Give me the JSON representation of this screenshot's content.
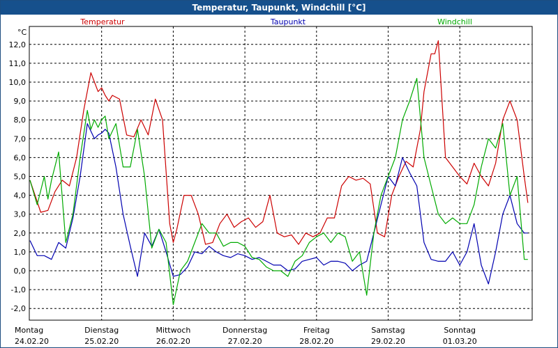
{
  "window": {
    "title": "Temperatur, Taupunkt, Windchill [°C]"
  },
  "chart_data": {
    "type": "line",
    "title": "Temperatur, Taupunkt, Windchill [°C]",
    "ylabel": "°C",
    "ylim": [
      -2.5,
      12.8
    ],
    "yticks": [
      12,
      11,
      10,
      9,
      8,
      7,
      6,
      5,
      4,
      3,
      2,
      1,
      0,
      -1,
      -2
    ],
    "ytick_labels": [
      "12,0",
      "11,0",
      "10,0",
      "9,0",
      "8,0",
      "7,0",
      "6,0",
      "5,0",
      "4,0",
      "3,0",
      "2,0",
      "1,0",
      "0,0",
      "-1,0",
      "-2,0"
    ],
    "xlim": [
      0,
      7
    ],
    "x_unit": "days since 24.02.20 00:00",
    "days": [
      {
        "name": "Montag",
        "date": "24.02.20"
      },
      {
        "name": "Dienstag",
        "date": "25.02.20"
      },
      {
        "name": "Mittwoch",
        "date": "26.02.20"
      },
      {
        "name": "Donnerstag",
        "date": "27.02.20"
      },
      {
        "name": "Freitag",
        "date": "28.02.20"
      },
      {
        "name": "Samstag",
        "date": "29.02.20"
      },
      {
        "name": "Sonntag",
        "date": "01.03.20"
      }
    ],
    "grid": true,
    "legend": "top",
    "series": [
      {
        "name": "Temperatur",
        "color": "#cc0000",
        "x": [
          0,
          0.15,
          0.25,
          0.35,
          0.45,
          0.55,
          0.65,
          0.75,
          0.85,
          0.95,
          1.0,
          1.05,
          1.1,
          1.15,
          1.25,
          1.35,
          1.45,
          1.55,
          1.65,
          1.75,
          1.85,
          1.95,
          2.0,
          2.05,
          2.15,
          2.25,
          2.35,
          2.45,
          2.55,
          2.65,
          2.75,
          2.85,
          2.95,
          3.05,
          3.15,
          3.25,
          3.35,
          3.45,
          3.55,
          3.65,
          3.75,
          3.85,
          3.95,
          4.05,
          4.15,
          4.25,
          4.35,
          4.45,
          4.55,
          4.65,
          4.75,
          4.85,
          4.95,
          5.05,
          5.15,
          5.25,
          5.35,
          5.45,
          5.5,
          5.55,
          5.6,
          5.65,
          5.7,
          5.8,
          5.9,
          6.0,
          6.1,
          6.2,
          6.3,
          6.4,
          6.5,
          6.6,
          6.7,
          6.8,
          6.9,
          6.95
        ],
        "y": [
          4.8,
          3.1,
          3.2,
          4.2,
          4.8,
          4.5,
          6.0,
          8.5,
          10.5,
          9.5,
          9.7,
          9.3,
          9.0,
          9.3,
          9.1,
          7.2,
          7.1,
          8.0,
          7.2,
          9.1,
          8.0,
          2.5,
          1.5,
          2.2,
          4.0,
          4.0,
          3.0,
          1.4,
          1.5,
          2.5,
          3.0,
          2.3,
          2.6,
          2.8,
          2.3,
          2.6,
          4.0,
          2.0,
          1.8,
          1.9,
          1.4,
          2.0,
          1.8,
          2.0,
          2.8,
          2.8,
          4.5,
          5.0,
          4.8,
          4.9,
          4.6,
          2.0,
          1.8,
          4.0,
          5.0,
          5.8,
          5.5,
          7.5,
          9.5,
          10.5,
          11.5,
          11.5,
          12.2,
          6.0,
          5.5,
          5.0,
          4.6,
          5.7,
          5.0,
          4.5,
          5.7,
          8.0,
          9.0,
          8.0,
          5.0,
          3.6
        ]
      },
      {
        "name": "Taupunkt",
        "color": "#0000b0",
        "x": [
          0,
          0.1,
          0.2,
          0.3,
          0.4,
          0.5,
          0.6,
          0.7,
          0.8,
          0.9,
          0.95,
          1.0,
          1.05,
          1.1,
          1.2,
          1.3,
          1.4,
          1.5,
          1.6,
          1.7,
          1.8,
          1.9,
          2.0,
          2.1,
          2.2,
          2.3,
          2.4,
          2.5,
          2.6,
          2.7,
          2.8,
          2.9,
          3.0,
          3.1,
          3.2,
          3.3,
          3.4,
          3.5,
          3.6,
          3.7,
          3.8,
          3.9,
          4.0,
          4.1,
          4.2,
          4.3,
          4.4,
          4.5,
          4.6,
          4.7,
          4.8,
          4.9,
          5.0,
          5.1,
          5.2,
          5.3,
          5.4,
          5.5,
          5.6,
          5.7,
          5.8,
          5.9,
          6.0,
          6.1,
          6.2,
          6.3,
          6.4,
          6.5,
          6.6,
          6.7,
          6.8,
          6.9,
          6.95
        ],
        "y": [
          1.6,
          0.8,
          0.8,
          0.6,
          1.5,
          1.2,
          2.8,
          5.0,
          7.8,
          7.0,
          7.2,
          7.3,
          7.5,
          7.3,
          5.5,
          3.0,
          1.3,
          -0.3,
          2.0,
          1.3,
          2.2,
          1.0,
          -0.3,
          -0.2,
          0.2,
          1.0,
          0.9,
          1.3,
          1.0,
          0.8,
          0.7,
          0.9,
          0.8,
          0.6,
          0.7,
          0.5,
          0.3,
          0.3,
          0.0,
          0.1,
          0.5,
          0.6,
          0.7,
          0.3,
          0.5,
          0.5,
          0.4,
          0.0,
          0.3,
          0.5,
          2.0,
          3.5,
          5.0,
          4.5,
          6.0,
          5.2,
          4.5,
          1.5,
          0.6,
          0.5,
          0.5,
          1.0,
          0.3,
          1.0,
          2.5,
          0.3,
          -0.7,
          1.0,
          3.0,
          4.0,
          2.5,
          2.0,
          2.0
        ]
      },
      {
        "name": "Windchill",
        "color": "#00aa00",
        "x": [
          0,
          0.1,
          0.2,
          0.25,
          0.3,
          0.4,
          0.5,
          0.6,
          0.7,
          0.8,
          0.85,
          0.9,
          0.95,
          1.0,
          1.05,
          1.1,
          1.2,
          1.3,
          1.4,
          1.5,
          1.6,
          1.7,
          1.8,
          1.9,
          2.0,
          2.1,
          2.2,
          2.3,
          2.4,
          2.5,
          2.6,
          2.7,
          2.8,
          2.9,
          3.0,
          3.1,
          3.2,
          3.3,
          3.4,
          3.5,
          3.6,
          3.7,
          3.8,
          3.9,
          4.0,
          4.1,
          4.2,
          4.3,
          4.4,
          4.5,
          4.6,
          4.7,
          4.8,
          4.9,
          5.0,
          5.1,
          5.2,
          5.3,
          5.4,
          5.5,
          5.6,
          5.7,
          5.8,
          5.9,
          6.0,
          6.1,
          6.2,
          6.3,
          6.4,
          6.5,
          6.6,
          6.7,
          6.8,
          6.9,
          6.95
        ],
        "y": [
          4.8,
          3.5,
          5.0,
          3.8,
          4.8,
          6.3,
          1.5,
          3.0,
          6.0,
          8.5,
          7.5,
          8.0,
          7.6,
          8.0,
          8.2,
          7.0,
          7.8,
          5.5,
          5.5,
          7.5,
          5.0,
          1.2,
          2.2,
          1.5,
          -1.8,
          0.0,
          0.5,
          1.5,
          2.5,
          2.0,
          2.0,
          1.3,
          1.5,
          1.5,
          1.3,
          0.7,
          0.6,
          0.2,
          0.0,
          0.0,
          -0.3,
          0.5,
          0.8,
          1.5,
          1.8,
          2.0,
          1.5,
          2.0,
          1.8,
          0.5,
          1.0,
          -1.3,
          2.0,
          4.0,
          5.0,
          6.0,
          8.0,
          9.0,
          10.2,
          6.0,
          4.5,
          3.0,
          2.5,
          2.8,
          2.5,
          2.5,
          3.5,
          5.5,
          7.0,
          6.5,
          7.8,
          4.0,
          5.0,
          0.6,
          0.6
        ]
      }
    ]
  }
}
